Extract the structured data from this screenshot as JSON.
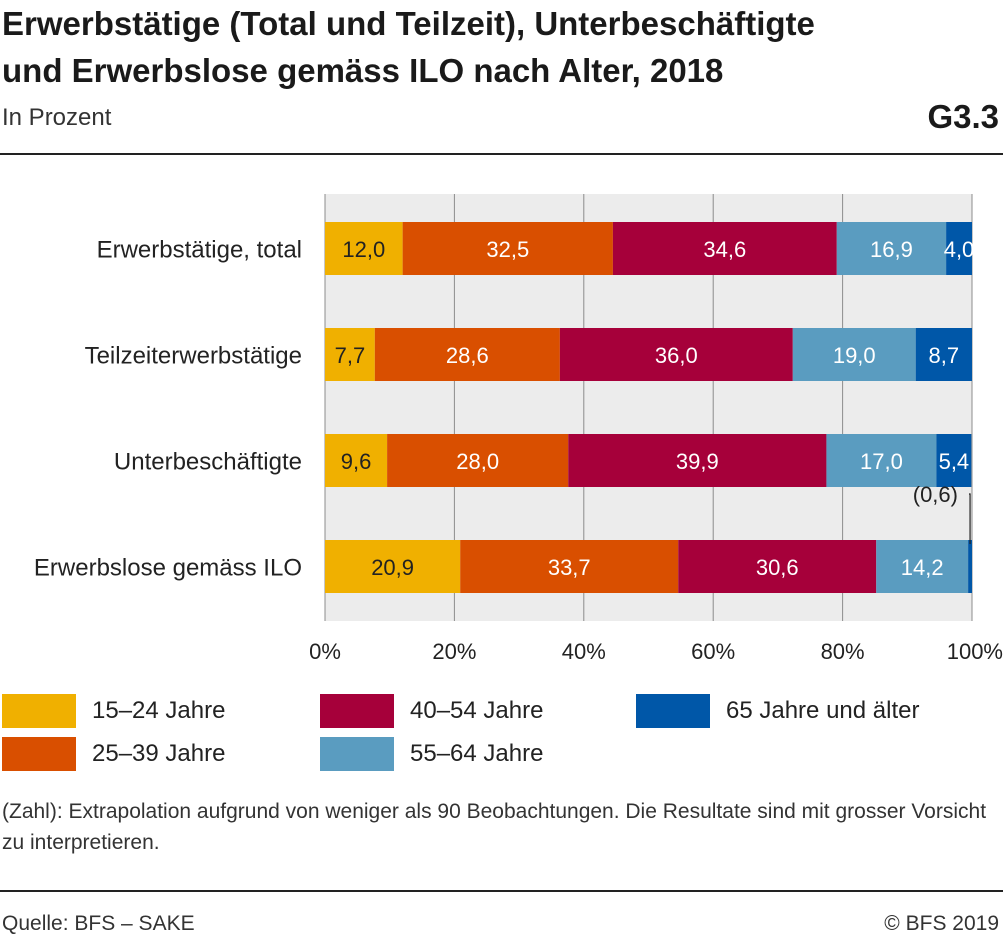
{
  "header": {
    "title_line1": "Erwerbstätige (Total und Teilzeit), Unterbeschäftigte",
    "title_line2": "und Erwerbslose gemäss ILO nach Alter, 2018",
    "subtitle": "In Prozent",
    "code": "G3.3"
  },
  "chart_data": {
    "type": "bar",
    "orientation": "horizontal",
    "stacked": true,
    "categories": [
      "Erwerbstätige, total",
      "Teilzeiterwerbstätige",
      "Unterbeschäftigte",
      "Erwerbslose gemäss ILO"
    ],
    "series": [
      {
        "name": "15–24 Jahre",
        "color": "#f0b000",
        "text_color": "#222222",
        "values": [
          12.0,
          7.7,
          9.6,
          20.9
        ],
        "labels": [
          "12,0",
          "7,7",
          "9,6",
          "20,9"
        ]
      },
      {
        "name": "25–39 Jahre",
        "color": "#d94f00",
        "text_color": "#ffffff",
        "values": [
          32.5,
          28.6,
          28.0,
          33.7
        ],
        "labels": [
          "32,5",
          "28,6",
          "28,0",
          "33,7"
        ]
      },
      {
        "name": "40–54 Jahre",
        "color": "#a6003a",
        "text_color": "#ffffff",
        "values": [
          34.6,
          36.0,
          39.9,
          30.6
        ],
        "labels": [
          "34,6",
          "36,0",
          "39,9",
          "30,6"
        ]
      },
      {
        "name": "55–64 Jahre",
        "color": "#5a9cc0",
        "text_color": "#ffffff",
        "values": [
          16.9,
          19.0,
          17.0,
          14.2
        ],
        "labels": [
          "16,9",
          "19,0",
          "17,0",
          "14,2"
        ]
      },
      {
        "name": "65 Jahre und älter",
        "color": "#0057a8",
        "text_color": "#ffffff",
        "values": [
          4.0,
          8.7,
          5.4,
          0.6
        ],
        "labels": [
          "4,0",
          "8,7",
          "5,4",
          "(0,6)"
        ]
      }
    ],
    "xlim": [
      0,
      100
    ],
    "xticks": [
      0,
      20,
      40,
      60,
      80,
      100
    ],
    "xtick_labels": [
      "0%",
      "20%",
      "40%",
      "60%",
      "80%",
      "100%"
    ],
    "grid": true,
    "plot_background": "#ececec",
    "legend_position": "bottom"
  },
  "footnote": "(Zahl): Extrapolation aufgrund von weniger als 90 Beobachtungen. Die Resultate sind mit grosser Vorsicht zu interpretieren.",
  "footer": {
    "source": "Quelle: BFS – SAKE",
    "copyright": "© BFS 2019"
  }
}
